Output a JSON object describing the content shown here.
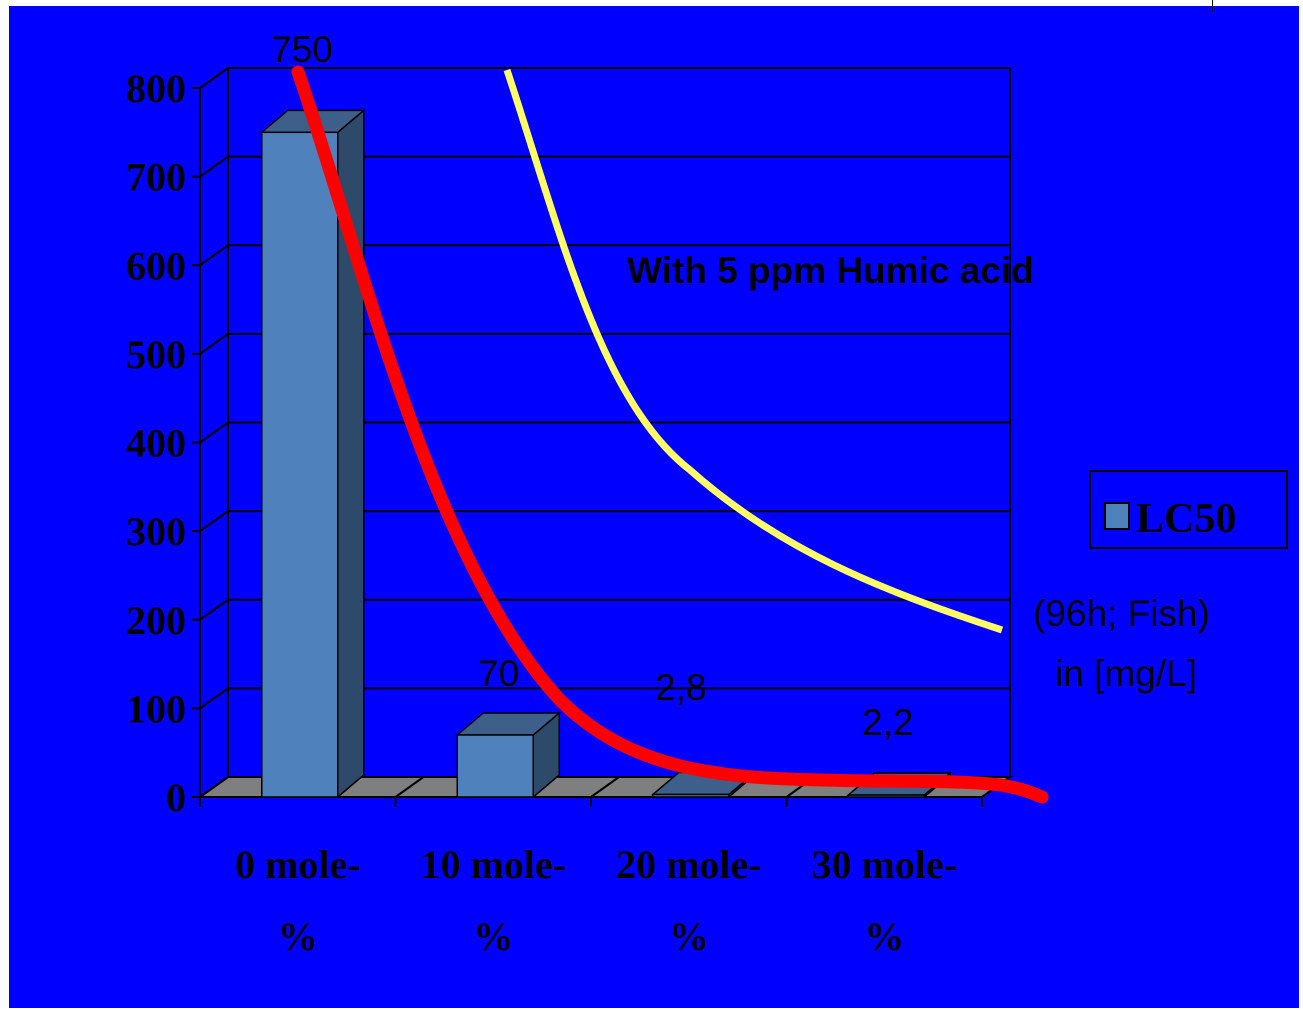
{
  "chart_data": {
    "type": "bar",
    "title": "",
    "xlabel": "",
    "ylabel": "",
    "ylim": [
      0,
      800
    ],
    "yticks": [
      "0",
      "100",
      "200",
      "300",
      "400",
      "500",
      "600",
      "700",
      "800"
    ],
    "categories": [
      [
        "0 mole-",
        "%"
      ],
      [
        "10 mole-",
        "%"
      ],
      [
        "20 mole-",
        "%"
      ],
      [
        "30 mole-",
        "%"
      ]
    ],
    "series": [
      {
        "name": "LC50",
        "values": [
          750,
          70,
          2.8,
          2.2
        ],
        "data_labels": [
          "750",
          "70",
          "2,8",
          "2,2"
        ],
        "color": "#4f81bd"
      }
    ],
    "grid": true,
    "legend": {
      "position": "right",
      "entries": [
        "LC50"
      ]
    },
    "annotations": {
      "humic": "With 5 ppm Humic acid",
      "unit_line1": "(96h; Fish)",
      "unit_line2": "in [mg/L]"
    },
    "overlay_curves": [
      {
        "color": "#ff0000",
        "description": "trend"
      },
      {
        "color": "#ffff66",
        "description": "humic"
      }
    ],
    "colors": {
      "background": "#0000ff",
      "floor": "#7f7f7f",
      "bar_side": "#2e4a6b",
      "bar_top": "#3d5f8a"
    }
  }
}
